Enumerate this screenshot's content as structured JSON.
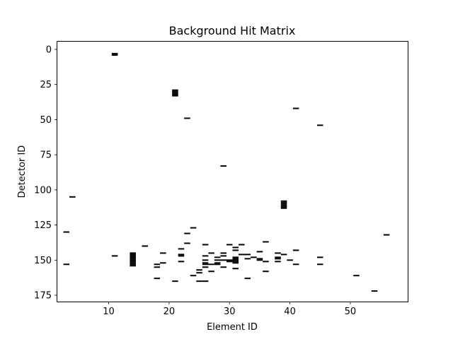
{
  "chart_data": {
    "type": "heatmap",
    "title": "Background Hit Matrix",
    "xlabel": "Element ID",
    "ylabel": "Detector ID",
    "xlim": [
      1.5,
      59.5
    ],
    "ylim": [
      179.5,
      -5.5
    ],
    "y_inverted": true,
    "grid": false,
    "colors": {
      "hit": "#000000",
      "background": "#ffffff",
      "frame": "#000000"
    },
    "x_ticks": [
      10,
      20,
      30,
      40,
      50
    ],
    "y_ticks": [
      0,
      25,
      50,
      75,
      100,
      125,
      150,
      175
    ],
    "hits": [
      [
        11,
        3
      ],
      [
        11,
        4
      ],
      [
        21,
        29
      ],
      [
        21,
        30
      ],
      [
        21,
        31
      ],
      [
        21,
        32
      ],
      [
        21,
        33
      ],
      [
        23,
        49
      ],
      [
        41,
        42
      ],
      [
        45,
        54
      ],
      [
        29,
        83
      ],
      [
        4,
        105
      ],
      [
        39,
        108
      ],
      [
        39,
        109
      ],
      [
        39,
        110
      ],
      [
        39,
        111
      ],
      [
        39,
        112
      ],
      [
        39,
        113
      ],
      [
        3,
        130
      ],
      [
        3,
        153
      ],
      [
        11,
        147
      ],
      [
        14,
        145
      ],
      [
        14,
        146
      ],
      [
        14,
        147
      ],
      [
        14,
        148
      ],
      [
        14,
        149
      ],
      [
        14,
        150
      ],
      [
        14,
        151
      ],
      [
        14,
        152
      ],
      [
        14,
        153
      ],
      [
        14,
        154
      ],
      [
        16,
        140
      ],
      [
        18,
        153
      ],
      [
        18,
        155
      ],
      [
        18,
        163
      ],
      [
        19,
        145
      ],
      [
        19,
        152
      ],
      [
        21,
        165
      ],
      [
        22,
        142
      ],
      [
        22,
        146
      ],
      [
        22,
        147
      ],
      [
        22,
        151
      ],
      [
        23,
        131
      ],
      [
        23,
        138
      ],
      [
        24,
        127
      ],
      [
        24,
        161
      ],
      [
        25,
        157
      ],
      [
        25,
        159
      ],
      [
        25,
        165
      ],
      [
        26,
        139
      ],
      [
        26,
        147
      ],
      [
        26,
        150
      ],
      [
        26,
        152
      ],
      [
        26,
        153
      ],
      [
        26,
        155
      ],
      [
        26,
        165
      ],
      [
        27,
        145
      ],
      [
        27,
        153
      ],
      [
        27,
        158
      ],
      [
        28,
        148
      ],
      [
        28,
        150
      ],
      [
        28,
        152
      ],
      [
        28,
        153
      ],
      [
        29,
        145
      ],
      [
        29,
        147
      ],
      [
        29,
        150
      ],
      [
        29,
        155
      ],
      [
        30,
        139
      ],
      [
        30,
        150
      ],
      [
        30,
        151
      ],
      [
        31,
        141
      ],
      [
        31,
        143
      ],
      [
        31,
        148
      ],
      [
        31,
        149
      ],
      [
        31,
        150
      ],
      [
        31,
        151
      ],
      [
        31,
        152
      ],
      [
        31,
        156
      ],
      [
        32,
        139
      ],
      [
        32,
        146
      ],
      [
        33,
        146
      ],
      [
        33,
        149
      ],
      [
        33,
        163
      ],
      [
        34,
        148
      ],
      [
        35,
        144
      ],
      [
        35,
        149
      ],
      [
        35,
        150
      ],
      [
        36,
        137
      ],
      [
        36,
        151
      ],
      [
        36,
        158
      ],
      [
        38,
        145
      ],
      [
        38,
        148
      ],
      [
        38,
        149
      ],
      [
        38,
        151
      ],
      [
        39,
        146
      ],
      [
        40,
        150
      ],
      [
        41,
        143
      ],
      [
        41,
        153
      ],
      [
        45,
        148
      ],
      [
        45,
        153
      ],
      [
        51,
        161
      ],
      [
        54,
        172
      ],
      [
        56,
        132
      ]
    ]
  }
}
